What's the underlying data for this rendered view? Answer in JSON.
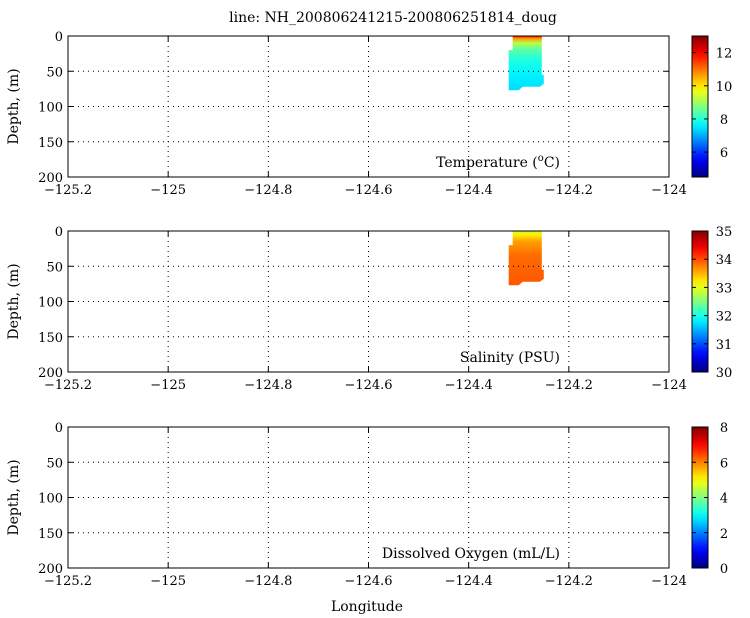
{
  "chart_data": [
    {
      "type": "heatmap",
      "panel": "temperature",
      "title": "line: NH_200806241215-200806251814_doug",
      "label": "Temperature (",
      "label_sup": "o",
      "label_tail": "C)",
      "ylabel": "Depth, (m)",
      "xlim": [
        -125.2,
        -124.0
      ],
      "ylim": [
        200,
        0
      ],
      "xticks": [
        "-125.2",
        "-125",
        "-124.8",
        "-124.6",
        "-124.4",
        "-124.2",
        "-124"
      ],
      "yticks": [
        "0",
        "50",
        "100",
        "150",
        "200"
      ],
      "grid": true,
      "colorbar": {
        "range": [
          4.5,
          13
        ],
        "ticks": [
          "6",
          "8",
          "10",
          "12"
        ],
        "colormap": "jet"
      },
      "data_patch": {
        "lon": [
          -124.32,
          -124.25
        ],
        "depth": [
          0,
          77
        ]
      },
      "profile": [
        {
          "depth": 0,
          "value": 11.8
        },
        {
          "depth": 4,
          "value": 10.6
        },
        {
          "depth": 10,
          "value": 9.2
        },
        {
          "depth": 20,
          "value": 8.4
        },
        {
          "depth": 35,
          "value": 7.9
        },
        {
          "depth": 55,
          "value": 7.6
        },
        {
          "depth": 77,
          "value": 7.4
        }
      ]
    },
    {
      "type": "heatmap",
      "panel": "salinity",
      "label": "Salinity (PSU)",
      "ylabel": "Depth, (m)",
      "xlim": [
        -125.2,
        -124.0
      ],
      "ylim": [
        200,
        0
      ],
      "xticks": [
        "-125.2",
        "-125",
        "-124.8",
        "-124.6",
        "-124.4",
        "-124.2",
        "-124"
      ],
      "yticks": [
        "0",
        "50",
        "100",
        "150",
        "200"
      ],
      "grid": true,
      "colorbar": {
        "range": [
          30,
          35
        ],
        "ticks": [
          "30",
          "31",
          "32",
          "33",
          "34",
          "35"
        ],
        "colormap": "jet"
      },
      "data_patch": {
        "lon": [
          -124.32,
          -124.25
        ],
        "depth": [
          0,
          77
        ]
      },
      "profile": [
        {
          "depth": 0,
          "value": 32.8
        },
        {
          "depth": 5,
          "value": 33.2
        },
        {
          "depth": 15,
          "value": 33.6
        },
        {
          "depth": 35,
          "value": 33.85
        },
        {
          "depth": 77,
          "value": 33.95
        }
      ]
    },
    {
      "type": "heatmap",
      "panel": "oxygen",
      "label": "Dissolved Oxygen (mL/L)",
      "ylabel": "Depth, (m)",
      "xlabel": "Longitude",
      "xlim": [
        -125.2,
        -124.0
      ],
      "ylim": [
        200,
        0
      ],
      "xticks": [
        "-125.2",
        "-125",
        "-124.8",
        "-124.6",
        "-124.4",
        "-124.2",
        "-124"
      ],
      "yticks": [
        "0",
        "50",
        "100",
        "150",
        "200"
      ],
      "grid": true,
      "colorbar": {
        "range": [
          0,
          8
        ],
        "ticks": [
          "0",
          "2",
          "4",
          "6",
          "8"
        ],
        "colormap": "jet"
      },
      "data_patch": null,
      "profile": []
    }
  ]
}
